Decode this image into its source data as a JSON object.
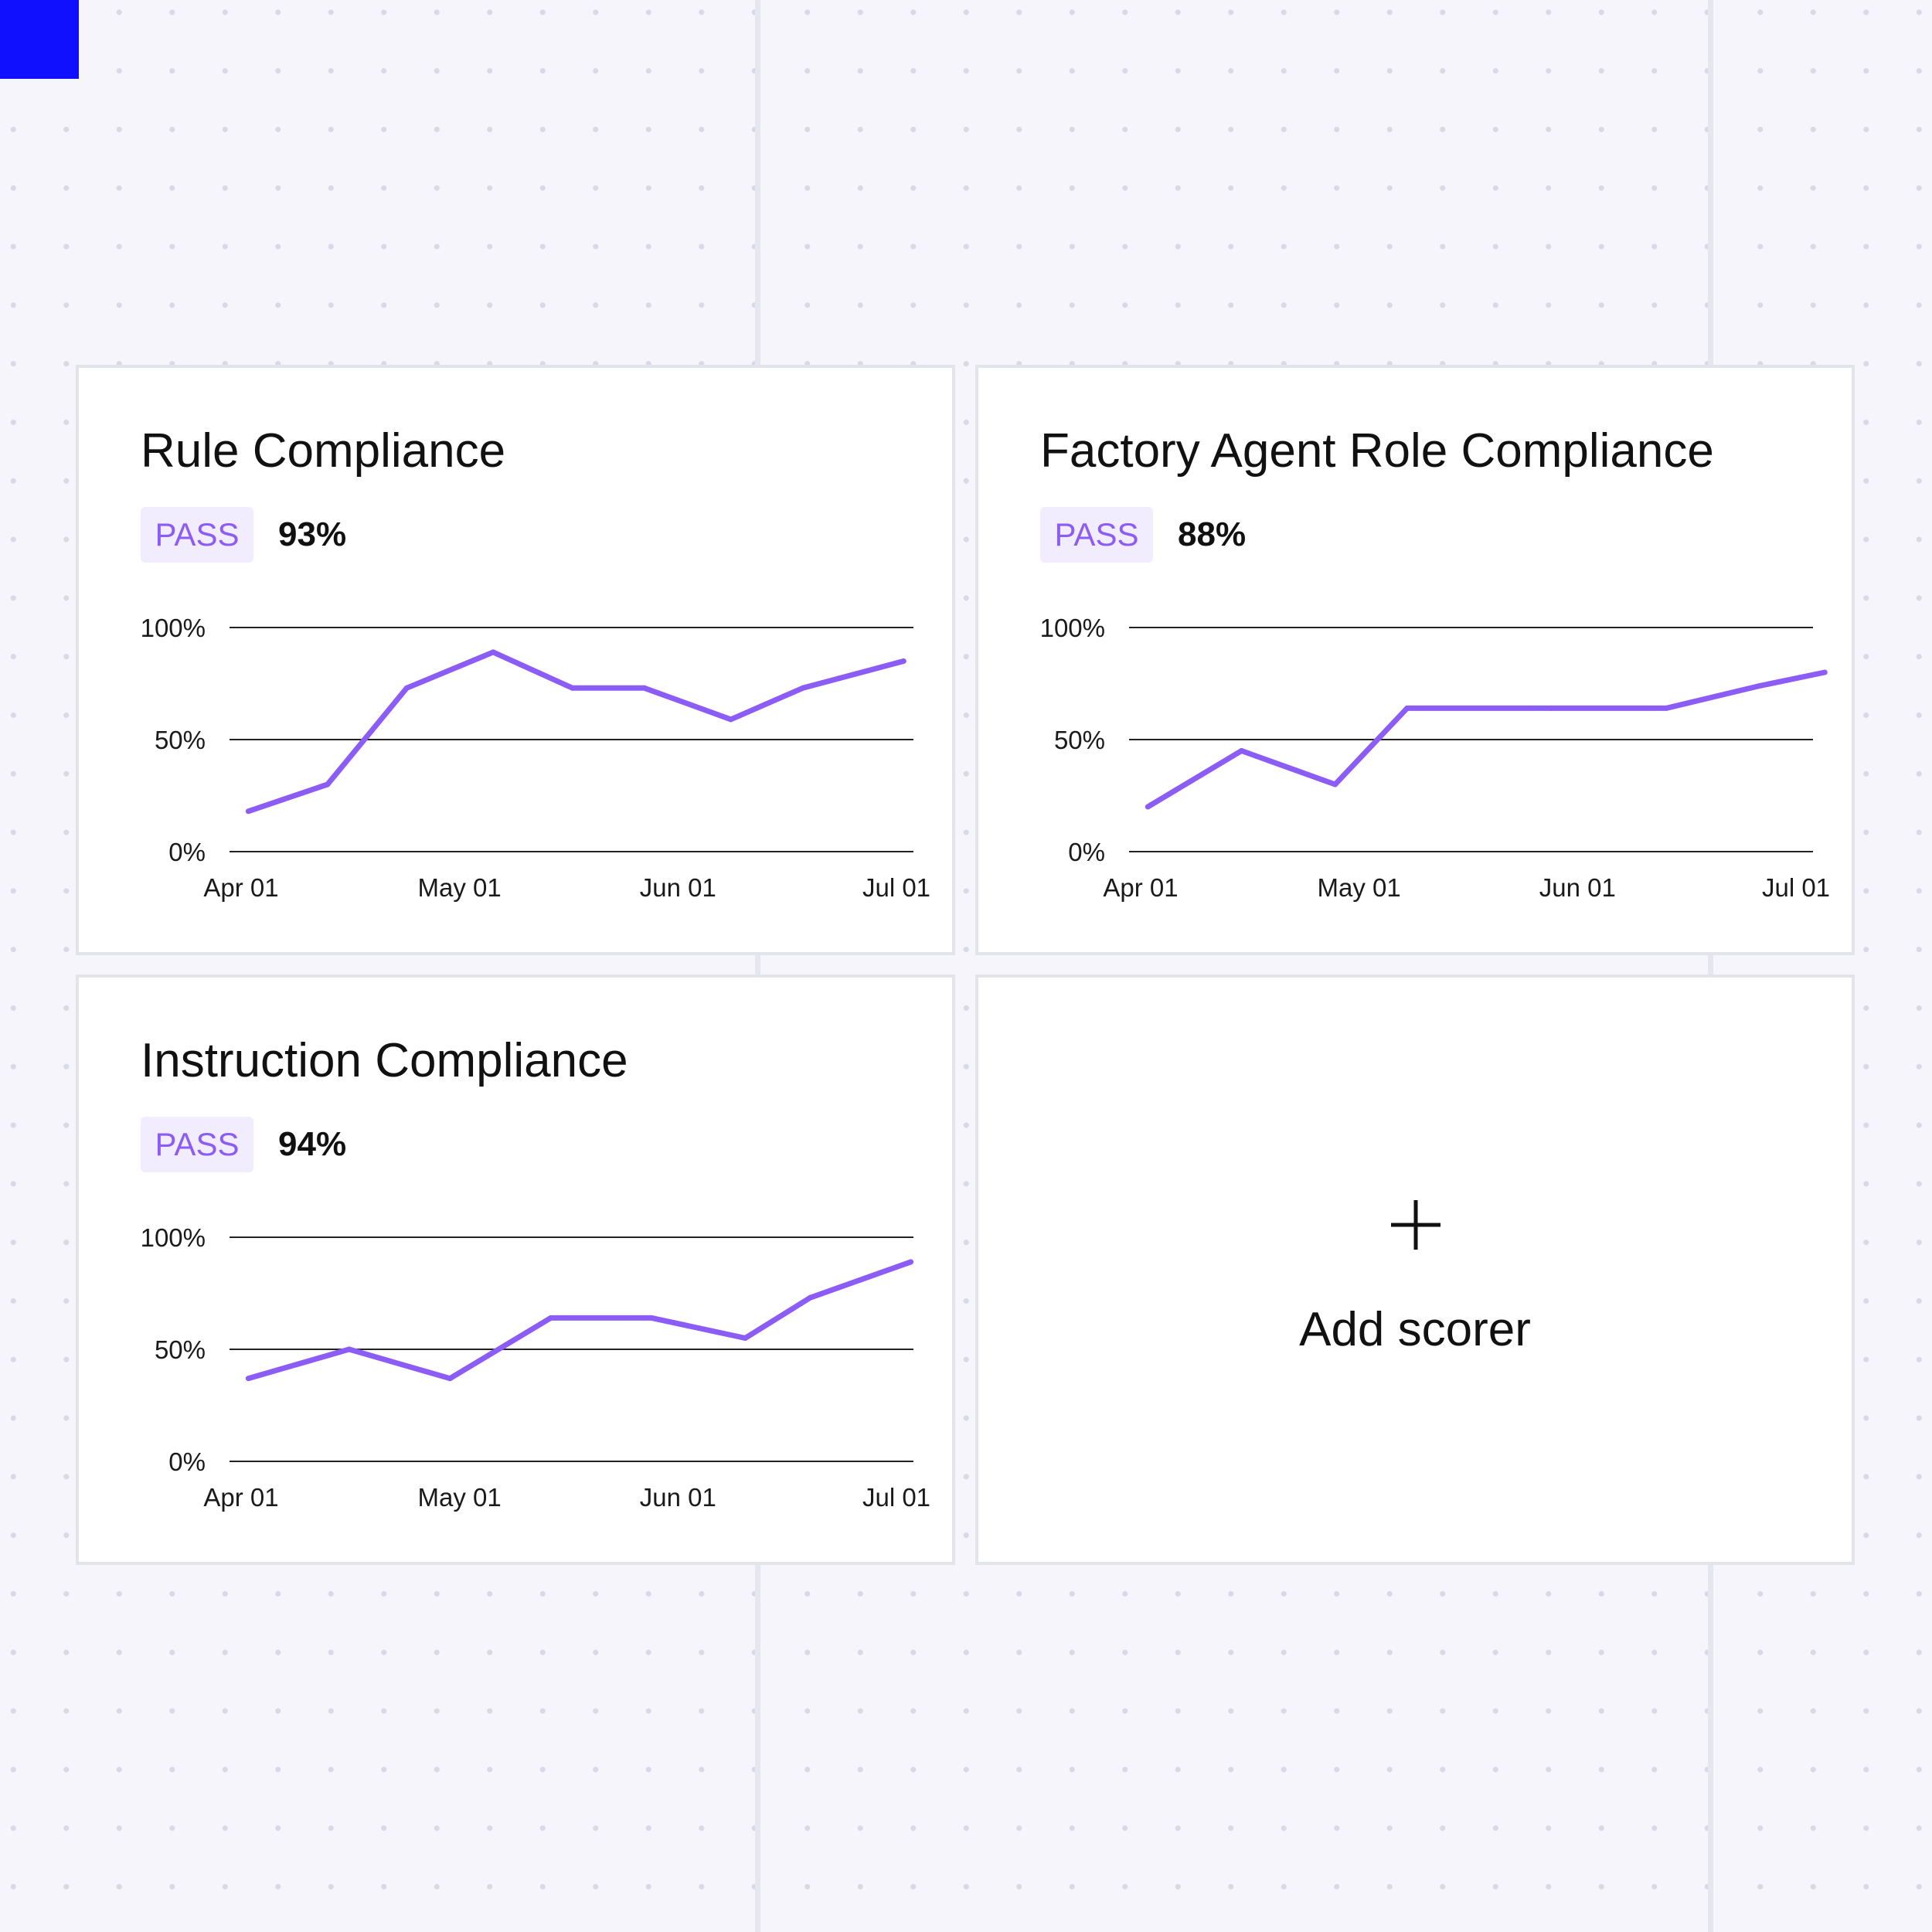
{
  "colors": {
    "accent": "#8b5cf6",
    "badge_bg": "#f1ecfe",
    "badge_text": "#8b5cf6",
    "corner_square": "#1010ff",
    "grid_line": "#222222"
  },
  "icons": {
    "add": "plus-icon"
  },
  "cards": [
    {
      "title": "Rule Compliance",
      "status": "PASS",
      "score": "93%"
    },
    {
      "title": "Factory Agent Role Compliance",
      "status": "PASS",
      "score": "88%"
    },
    {
      "title": "Instruction Compliance",
      "status": "PASS",
      "score": "94%"
    }
  ],
  "add_card": {
    "label": "Add scorer"
  },
  "chart_data": [
    {
      "type": "line",
      "x_tick_labels": [
        "Apr 01",
        "May 01",
        "Jun 01",
        "Jul 01"
      ],
      "x_domain": [
        "2024-04-01",
        "2024-07-01"
      ],
      "y_tick_labels": [
        "100%",
        "50%",
        "0%"
      ],
      "ylim": [
        0,
        100
      ],
      "grid": true,
      "x": [
        "2024-04-02",
        "2024-04-13",
        "2024-04-24",
        "2024-05-06",
        "2024-05-17",
        "2024-05-27",
        "2024-06-08",
        "2024-06-18",
        "2024-07-02"
      ],
      "values": [
        18,
        30,
        73,
        89,
        73,
        73,
        59,
        73,
        85
      ]
    },
    {
      "type": "line",
      "x_tick_labels": [
        "Apr 01",
        "May 01",
        "Jun 01",
        "Jul 01"
      ],
      "x_domain": [
        "2024-04-01",
        "2024-07-01"
      ],
      "y_tick_labels": [
        "100%",
        "50%",
        "0%"
      ],
      "ylim": [
        0,
        100
      ],
      "grid": true,
      "x": [
        "2024-04-02",
        "2024-04-15",
        "2024-04-28",
        "2024-05-08",
        "2024-05-28",
        "2024-06-13",
        "2024-06-26",
        "2024-07-05"
      ],
      "values": [
        20,
        45,
        30,
        64,
        64,
        64,
        74,
        80
      ]
    },
    {
      "type": "line",
      "x_tick_labels": [
        "Apr 01",
        "May 01",
        "Jun 01",
        "Jul 01"
      ],
      "x_domain": [
        "2024-04-01",
        "2024-07-01"
      ],
      "y_tick_labels": [
        "100%",
        "50%",
        "0%"
      ],
      "ylim": [
        0,
        100
      ],
      "grid": true,
      "x": [
        "2024-04-02",
        "2024-04-16",
        "2024-04-30",
        "2024-05-14",
        "2024-05-28",
        "2024-06-10",
        "2024-06-19",
        "2024-07-03"
      ],
      "values": [
        37,
        50,
        37,
        64,
        64,
        55,
        73,
        89
      ]
    }
  ]
}
